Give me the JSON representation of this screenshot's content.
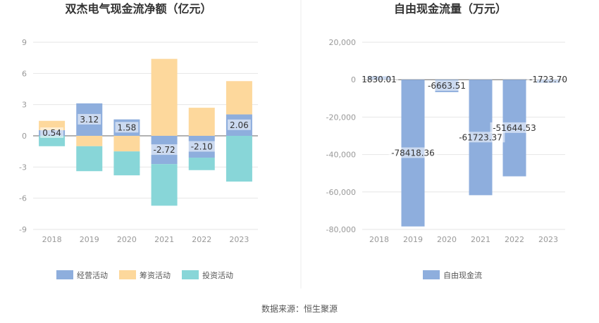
{
  "colors": {
    "operating": "#8eaedd",
    "financing": "#fdd89c",
    "investing": "#88d6d8",
    "fcf": "#8eaedd",
    "grid": "#e6e6e6",
    "axis_text": "#999999",
    "title": "#333333"
  },
  "chart_data": [
    {
      "type": "bar",
      "stacked": true,
      "title": "双杰电气现金流净额（亿元）",
      "categories": [
        "2018",
        "2019",
        "2020",
        "2021",
        "2022",
        "2023"
      ],
      "ylim": [
        -9,
        9
      ],
      "yticks": [
        9,
        6,
        3,
        0,
        -3,
        -6,
        -9
      ],
      "series": [
        {
          "name": "经营活动",
          "key": "operating",
          "values": [
            0.54,
            3.12,
            1.58,
            -2.72,
            -2.1,
            2.06
          ],
          "labels": [
            "0.54",
            "3.12",
            "1.58",
            "-2.72",
            "-2.10",
            "2.06"
          ]
        },
        {
          "name": "筹资活动",
          "key": "financing",
          "values": [
            0.9,
            -1.0,
            -1.5,
            7.4,
            2.7,
            3.2
          ]
        },
        {
          "name": "投资活动",
          "key": "investing",
          "values": [
            -1.0,
            -2.4,
            -2.3,
            -4.0,
            -1.2,
            -4.4
          ]
        }
      ],
      "legend": [
        "经营活动",
        "筹资活动",
        "投资活动"
      ]
    },
    {
      "type": "bar",
      "title": "自由现金流量（万元）",
      "categories": [
        "2018",
        "2019",
        "2020",
        "2021",
        "2022",
        "2023"
      ],
      "ylim": [
        -80000,
        20000
      ],
      "yticks": [
        20000,
        0,
        -20000,
        -40000,
        -60000,
        -80000
      ],
      "ytick_labels": [
        "20,000",
        "0",
        "-20,000",
        "-40,000",
        "-60,000",
        "-80,000"
      ],
      "series": [
        {
          "name": "自由现金流",
          "key": "fcf",
          "values": [
            1830.01,
            -78418.36,
            -6663.51,
            -61723.37,
            -51644.53,
            -1723.7
          ],
          "labels": [
            "1830.01",
            "-78418.36",
            "-6663.51",
            "-61723.37",
            "-51644.53",
            "-1723.70"
          ]
        }
      ],
      "legend": [
        "自由现金流"
      ]
    }
  ],
  "footer": {
    "source": "数据来源：恒生聚源"
  }
}
